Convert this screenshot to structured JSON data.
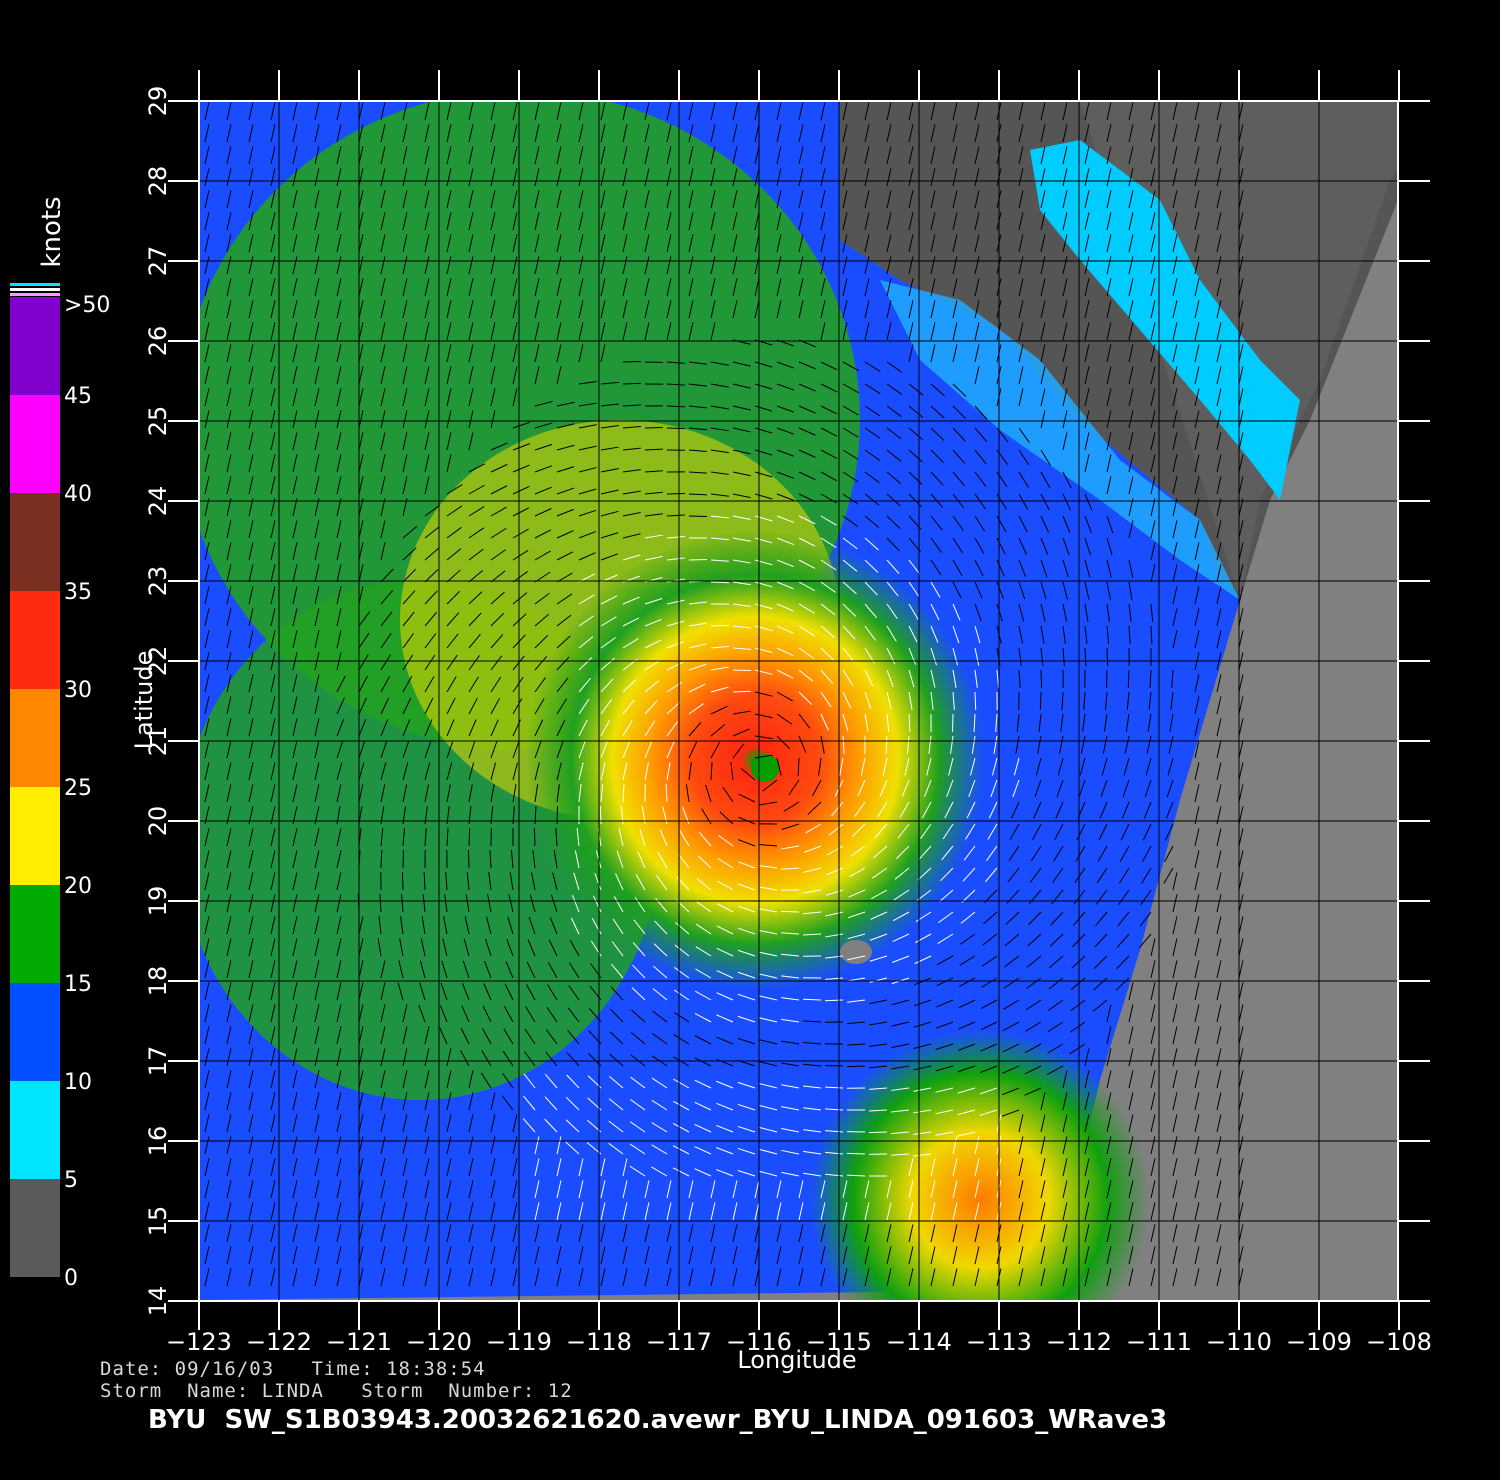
{
  "map": {
    "lon_ticks": [
      "−123",
      "−122",
      "−121",
      "−120",
      "−119",
      "−118",
      "−117",
      "−116",
      "−115",
      "−114",
      "−113",
      "−112",
      "−111",
      "−110",
      "−109",
      "−108"
    ],
    "lat_ticks": [
      "14",
      "15",
      "16",
      "17",
      "18",
      "19",
      "20",
      "21",
      "22",
      "23",
      "24",
      "25",
      "26",
      "27",
      "28",
      "29"
    ],
    "xlabel": "Longitude",
    "ylabel": "Latitude",
    "land_color": "#555555",
    "nodata_color": "#808080"
  },
  "colorbar": {
    "unit": "knots",
    "labels": [
      "0",
      "5",
      "10",
      "15",
      "20",
      "25",
      "30",
      "35",
      "40",
      "45",
      ">50"
    ],
    "colors": [
      "#5a5a5a",
      "#00e5ff",
      "#0050ff",
      "#00aa00",
      "#ffee00",
      "#ff8800",
      "#ff2a10",
      "#7a3020",
      "#ff00ff",
      "#8000cc"
    ]
  },
  "info": {
    "date_line": "Date: 09/16/03   Time: 18:38:54",
    "storm_line": "Storm  Name: LINDA   Storm  Number: 12",
    "title": "BYU  SW_S1B03943.20032621620.avewr_BYU_LINDA_091603_WRave3"
  }
}
